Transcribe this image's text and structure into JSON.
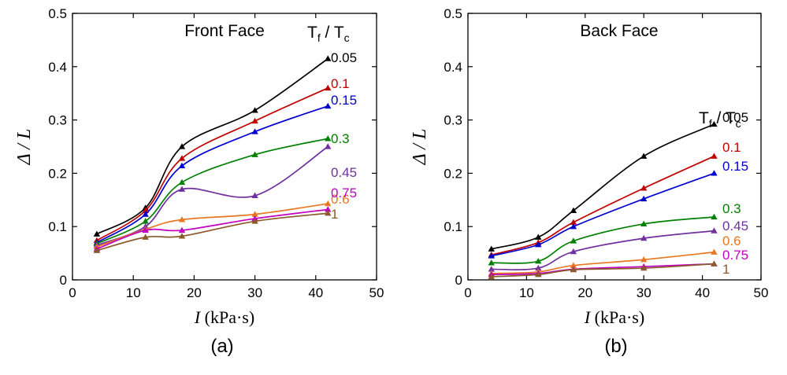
{
  "chart_data": [
    {
      "type": "line",
      "panel_caption": "(a)",
      "title": "Front Face",
      "legend_title": {
        "main": "T",
        "sub1": "f",
        "sep": " / ",
        "main2": "T",
        "sub2": "c"
      },
      "xlabel": {
        "var": "I",
        "unit": " (kPa·s)"
      },
      "ylabel": "Δ / L",
      "xlim": [
        0,
        50
      ],
      "ylim": [
        0,
        0.5
      ],
      "xticks": [
        "0",
        "10",
        "20",
        "30",
        "40",
        "50"
      ],
      "yticks": [
        "0",
        "0.1",
        "0.2",
        "0.3",
        "0.4",
        "0.5"
      ],
      "x": [
        4,
        12,
        18,
        30,
        42
      ],
      "series": [
        {
          "name": "0.05",
          "color": "#000000",
          "values": [
            0.086,
            0.135,
            0.25,
            0.318,
            0.415
          ]
        },
        {
          "name": "0.1",
          "color": "#c00000",
          "values": [
            0.074,
            0.13,
            0.228,
            0.298,
            0.36
          ]
        },
        {
          "name": "0.15",
          "color": "#0000d0",
          "values": [
            0.07,
            0.123,
            0.214,
            0.278,
            0.326
          ]
        },
        {
          "name": "0.3",
          "color": "#008000",
          "values": [
            0.068,
            0.11,
            0.183,
            0.235,
            0.265
          ]
        },
        {
          "name": "0.45",
          "color": "#7030a0",
          "values": [
            0.065,
            0.1,
            0.17,
            0.158,
            0.25
          ]
        },
        {
          "name": "0.6",
          "color": "#e87722",
          "values": [
            0.062,
            0.095,
            0.113,
            0.123,
            0.143
          ]
        },
        {
          "name": "0.75",
          "color": "#c000c0",
          "values": [
            0.058,
            0.093,
            0.093,
            0.115,
            0.132
          ]
        },
        {
          "name": "1",
          "color": "#8b5a2b",
          "values": [
            0.055,
            0.08,
            0.082,
            0.11,
            0.125
          ]
        }
      ]
    },
    {
      "type": "line",
      "panel_caption": "(b)",
      "title": "Back Face",
      "legend_title": {
        "main": "T",
        "sub1": "f",
        "sep": " / ",
        "main2": "T",
        "sub2": "c"
      },
      "xlabel": {
        "var": "I",
        "unit": " (kPa·s)"
      },
      "ylabel": "Δ / L",
      "xlim": [
        0,
        50
      ],
      "ylim": [
        0,
        0.5
      ],
      "xticks": [
        "0",
        "10",
        "20",
        "30",
        "40",
        "50"
      ],
      "yticks": [
        "0",
        "0.1",
        "0.2",
        "0.3",
        "0.4",
        "0.5"
      ],
      "x": [
        4,
        12,
        18,
        30,
        42
      ],
      "series": [
        {
          "name": "0.05",
          "color": "#000000",
          "values": [
            0.058,
            0.08,
            0.13,
            0.232,
            0.292
          ]
        },
        {
          "name": "0.1",
          "color": "#c00000",
          "values": [
            0.047,
            0.07,
            0.108,
            0.172,
            0.232
          ]
        },
        {
          "name": "0.15",
          "color": "#0000d0",
          "values": [
            0.045,
            0.066,
            0.1,
            0.152,
            0.2
          ]
        },
        {
          "name": "0.3",
          "color": "#008000",
          "values": [
            0.032,
            0.035,
            0.073,
            0.105,
            0.118
          ]
        },
        {
          "name": "0.45",
          "color": "#7030a0",
          "values": [
            0.02,
            0.022,
            0.053,
            0.078,
            0.092
          ]
        },
        {
          "name": "0.6",
          "color": "#e87722",
          "values": [
            0.012,
            0.015,
            0.027,
            0.038,
            0.052
          ]
        },
        {
          "name": "0.75",
          "color": "#c000c0",
          "values": [
            0.01,
            0.012,
            0.02,
            0.025,
            0.03
          ]
        },
        {
          "name": "1",
          "color": "#8b5a2b",
          "values": [
            0.006,
            0.01,
            0.019,
            0.022,
            0.03
          ]
        }
      ]
    }
  ]
}
